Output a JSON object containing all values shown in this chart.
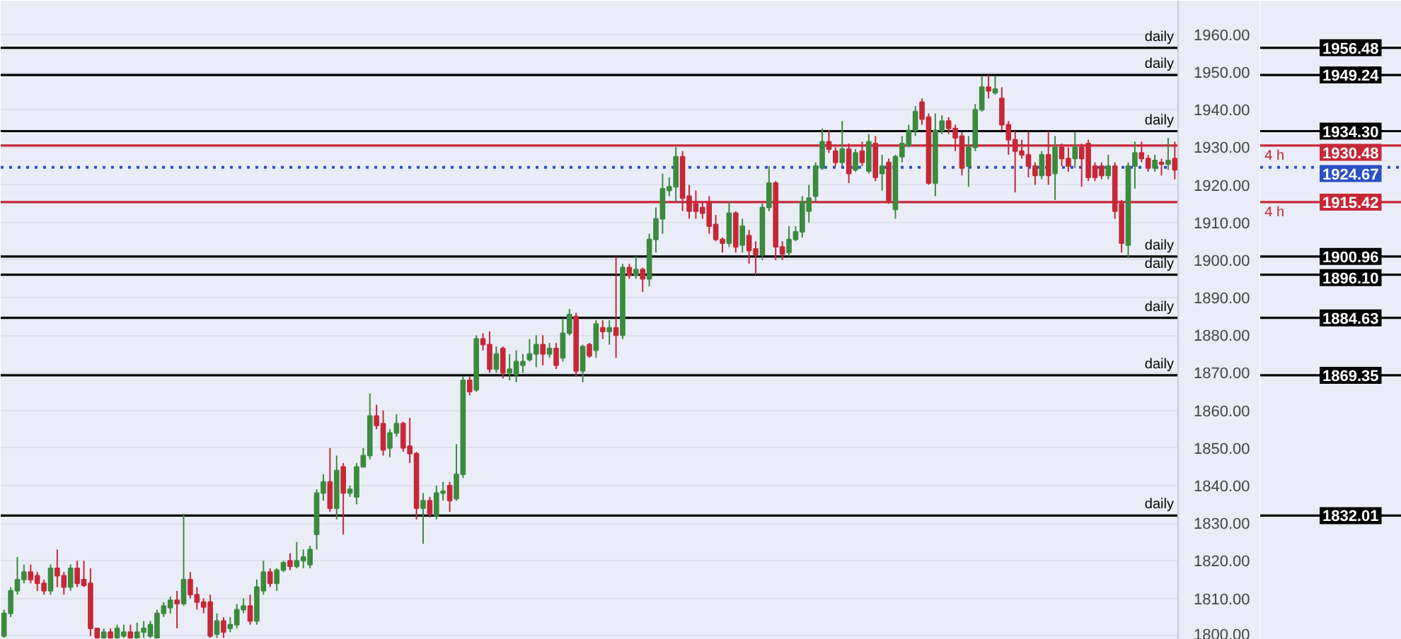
{
  "chart_data": {
    "type": "candlestick",
    "categories": [
      null,
      null,
      null,
      null,
      null,
      null,
      null,
      null,
      null,
      null,
      null,
      null,
      null,
      null,
      null,
      null,
      null,
      null,
      null,
      null,
      null,
      null,
      null,
      null,
      null,
      null,
      null,
      null,
      null,
      null,
      null,
      null,
      null,
      null,
      null,
      null,
      null,
      null,
      null,
      null,
      null,
      null,
      null,
      null,
      null,
      null,
      null,
      null,
      null,
      null,
      null,
      null,
      null,
      null,
      null,
      null,
      null,
      null,
      null,
      null,
      null,
      null,
      null,
      null,
      null,
      null,
      null,
      null,
      null,
      null,
      null,
      null,
      null,
      null,
      null,
      null,
      null,
      null,
      null,
      null,
      null,
      null,
      null,
      null,
      null,
      null,
      null,
      null,
      null,
      null,
      null,
      null,
      null,
      null,
      null,
      null,
      null,
      null,
      null,
      null,
      null,
      null,
      null,
      null,
      null,
      null,
      null,
      null,
      null,
      null,
      null,
      null,
      null,
      null,
      null,
      null,
      null,
      null,
      null,
      null,
      null,
      null,
      null,
      null,
      null,
      null,
      null,
      null,
      null,
      null,
      null,
      null,
      null,
      null,
      null,
      null,
      null,
      null,
      null,
      null,
      null,
      null,
      null,
      null,
      null,
      null,
      null,
      null,
      null,
      null,
      null,
      null,
      null,
      null,
      null,
      null,
      null,
      null,
      null,
      null,
      null,
      null,
      null,
      null,
      null,
      null,
      null,
      null,
      null,
      null,
      null,
      null,
      null,
      null,
      null,
      null,
      null
    ],
    "ohlc": [
      [
        1800,
        1807,
        1799.5,
        1806
      ],
      [
        1806,
        1813,
        1805,
        1812
      ],
      [
        1812,
        1821,
        1811,
        1815
      ],
      [
        1815,
        1819,
        1814,
        1817
      ],
      [
        1817,
        1819,
        1814,
        1815
      ],
      [
        1816,
        1817,
        1812,
        1814
      ],
      [
        1814,
        1815,
        1811,
        1812
      ],
      [
        1812,
        1819,
        1811,
        1818
      ],
      [
        1818,
        1823,
        1813,
        1816
      ],
      [
        1816,
        1817,
        1811,
        1813
      ],
      [
        1813,
        1819,
        1812,
        1818
      ],
      [
        1818,
        1820,
        1813,
        1814
      ],
      [
        1815,
        1820,
        1813,
        1813.5
      ],
      [
        1814,
        1818,
        1800,
        1802
      ],
      [
        1802,
        1802,
        1799.5,
        1799.5
      ],
      [
        1799.5,
        1802,
        1799.5,
        1801
      ],
      [
        1801,
        1802,
        1799.5,
        1799.5
      ],
      [
        1799.5,
        1803,
        1799.5,
        1802
      ],
      [
        1800,
        1803,
        1799.5,
        1801
      ],
      [
        1801,
        1803,
        1799.5,
        1799.5
      ],
      [
        1799.5,
        1803.5,
        1799.5,
        1801
      ],
      [
        1801,
        1804,
        1799.5,
        1802
      ],
      [
        1800,
        1804,
        1799.5,
        1803
      ],
      [
        1799.5,
        1807,
        1799.5,
        1806
      ],
      [
        1806,
        1809,
        1805,
        1808
      ],
      [
        1807.5,
        1810.5,
        1806,
        1809.5
      ],
      [
        1809.5,
        1812,
        1802,
        1808.6
      ],
      [
        1808.6,
        1832.5,
        1808,
        1815
      ],
      [
        1815,
        1817,
        1810,
        1811
      ],
      [
        1811,
        1813,
        1807,
        1809
      ],
      [
        1809,
        1810,
        1806,
        1807.7
      ],
      [
        1809,
        1811,
        1799.5,
        1800
      ],
      [
        1800.5,
        1806,
        1799.5,
        1804
      ],
      [
        1804,
        1805,
        1799.5,
        1801
      ],
      [
        1802,
        1805,
        1801,
        1803
      ],
      [
        1803,
        1808.5,
        1802,
        1807
      ],
      [
        1807,
        1810,
        1806,
        1808
      ],
      [
        1808,
        1811,
        1803,
        1804
      ],
      [
        1804,
        1815,
        1803,
        1813
      ],
      [
        1812,
        1820,
        1811,
        1817
      ],
      [
        1817,
        1818,
        1813,
        1814
      ],
      [
        1814,
        1818,
        1812,
        1817.5
      ],
      [
        1817.5,
        1820,
        1817,
        1819.5
      ],
      [
        1820,
        1822,
        1817.5,
        1818.5
      ],
      [
        1818.5,
        1825,
        1818,
        1820
      ],
      [
        1820,
        1823,
        1818,
        1821
      ],
      [
        1819,
        1824,
        1818,
        1823
      ],
      [
        1827,
        1839,
        1823,
        1838
      ],
      [
        1838,
        1843,
        1836,
        1841
      ],
      [
        1841,
        1850,
        1833,
        1834
      ],
      [
        1834,
        1848,
        1831,
        1844
      ],
      [
        1845,
        1846,
        1827,
        1838
      ],
      [
        1838,
        1840,
        1837,
        1839
      ],
      [
        1837,
        1846,
        1835,
        1845
      ],
      [
        1845,
        1850,
        1845,
        1848
      ],
      [
        1848,
        1864.5,
        1847,
        1858.5
      ],
      [
        1858.5,
        1861.5,
        1855,
        1856
      ],
      [
        1856.5,
        1860,
        1848,
        1849.5
      ],
      [
        1850,
        1855,
        1847.5,
        1854
      ],
      [
        1854,
        1859,
        1853,
        1856.5
      ],
      [
        1856.5,
        1857,
        1849,
        1850
      ],
      [
        1850.5,
        1858,
        1846,
        1848.5
      ],
      [
        1848.5,
        1849,
        1831,
        1834
      ],
      [
        1834,
        1838,
        1824.5,
        1836
      ],
      [
        1836,
        1837,
        1831.5,
        1832.5
      ],
      [
        1832,
        1840,
        1831,
        1838
      ],
      [
        1838,
        1841,
        1836,
        1838.5
      ],
      [
        1840,
        1841,
        1833,
        1836
      ],
      [
        1836.5,
        1851,
        1836,
        1843
      ],
      [
        1843,
        1869,
        1842,
        1868
      ],
      [
        1868,
        1869,
        1864,
        1865
      ],
      [
        1865.5,
        1880,
        1865,
        1879
      ],
      [
        1879,
        1880.5,
        1876,
        1877.5
      ],
      [
        1877.5,
        1881,
        1870,
        1871
      ],
      [
        1871,
        1877,
        1870,
        1875
      ],
      [
        1876.5,
        1877,
        1868.5,
        1870
      ],
      [
        1870,
        1875,
        1868,
        1871
      ],
      [
        1869.5,
        1876,
        1867.5,
        1873
      ],
      [
        1872,
        1875,
        1870,
        1873
      ],
      [
        1873.5,
        1879,
        1873,
        1875
      ],
      [
        1875,
        1880,
        1871.5,
        1877.5
      ],
      [
        1877.5,
        1880,
        1872,
        1875
      ],
      [
        1875,
        1878,
        1874,
        1876.5
      ],
      [
        1876.5,
        1878,
        1871,
        1872
      ],
      [
        1874,
        1884.5,
        1873,
        1880.5
      ],
      [
        1880.5,
        1887,
        1880,
        1885.5
      ],
      [
        1885,
        1886,
        1869,
        1870.5
      ],
      [
        1870.5,
        1877.5,
        1867.5,
        1877
      ],
      [
        1877.5,
        1878,
        1874,
        1874.5
      ],
      [
        1876,
        1884,
        1874,
        1883
      ],
      [
        1882,
        1884,
        1879,
        1881
      ],
      [
        1881,
        1884,
        1877.5,
        1882
      ],
      [
        1882,
        1901,
        1874,
        1880
      ],
      [
        1880,
        1899,
        1879,
        1898
      ],
      [
        1898,
        1899,
        1895,
        1896
      ],
      [
        1896,
        1901,
        1895,
        1897.5
      ],
      [
        1897.5,
        1898,
        1891.5,
        1895
      ],
      [
        1895,
        1907,
        1893,
        1905.5
      ],
      [
        1905.5,
        1914,
        1902,
        1911
      ],
      [
        1911,
        1923,
        1907,
        1919
      ],
      [
        1918.5,
        1922,
        1917,
        1919.5
      ],
      [
        1919.5,
        1930,
        1915.5,
        1927.5
      ],
      [
        1927.5,
        1929,
        1913,
        1916.5
      ],
      [
        1917,
        1920,
        1911,
        1913
      ],
      [
        1915,
        1918.5,
        1911,
        1913
      ],
      [
        1914,
        1915.5,
        1911,
        1912.5
      ],
      [
        1915.5,
        1917,
        1907,
        1909
      ],
      [
        1909.5,
        1912,
        1905,
        1905.5
      ],
      [
        1905.5,
        1906,
        1902,
        1904.5
      ],
      [
        1904.5,
        1915.5,
        1903.5,
        1912.5
      ],
      [
        1912.5,
        1913,
        1902,
        1903.5
      ],
      [
        1904,
        1911,
        1902,
        1909
      ],
      [
        1906.5,
        1908,
        1899,
        1902.5
      ],
      [
        1903,
        1905,
        1896.1,
        1901.5
      ],
      [
        1901.5,
        1915,
        1900,
        1914
      ],
      [
        1914,
        1925,
        1913,
        1920.5
      ],
      [
        1920.5,
        1921,
        1900,
        1903.5
      ],
      [
        1903.5,
        1905,
        1900,
        1901.6
      ],
      [
        1902,
        1909,
        1901,
        1905.5
      ],
      [
        1905.5,
        1909,
        1905,
        1907.5
      ],
      [
        1907.5,
        1917,
        1906,
        1915.5
      ],
      [
        1913,
        1920,
        1910,
        1916.5
      ],
      [
        1917,
        1926,
        1915.5,
        1925
      ],
      [
        1924.5,
        1935,
        1924,
        1931.5
      ],
      [
        1931.5,
        1934.5,
        1928.5,
        1929.5
      ],
      [
        1929,
        1930,
        1925,
        1926
      ],
      [
        1926,
        1937,
        1925,
        1929.5
      ],
      [
        1929.5,
        1931,
        1920.5,
        1923
      ],
      [
        1924,
        1929.5,
        1923.5,
        1928.5
      ],
      [
        1929,
        1931.5,
        1925,
        1926
      ],
      [
        1923.7,
        1933.5,
        1923,
        1931.5
      ],
      [
        1931,
        1933,
        1921,
        1922
      ],
      [
        1923,
        1928,
        1918.5,
        1925
      ],
      [
        1926,
        1927,
        1915,
        1915.5
      ],
      [
        1913.5,
        1928,
        1911,
        1927.5
      ],
      [
        1927.5,
        1933,
        1926,
        1931
      ],
      [
        1930.5,
        1936,
        1930,
        1934.5
      ],
      [
        1934.5,
        1941,
        1933,
        1939.5
      ],
      [
        1942,
        1943,
        1936,
        1937.5
      ],
      [
        1938,
        1939,
        1920,
        1920.5
      ],
      [
        1920.5,
        1939,
        1917,
        1934.5
      ],
      [
        1934.5,
        1938.5,
        1933.5,
        1937
      ],
      [
        1937,
        1938,
        1933.5,
        1935
      ],
      [
        1935,
        1936,
        1929,
        1932.5
      ],
      [
        1933,
        1934,
        1922.5,
        1924.5
      ],
      [
        1925,
        1933,
        1919.5,
        1930
      ],
      [
        1930,
        1941.5,
        1929,
        1940
      ],
      [
        1940,
        1949,
        1939.5,
        1946
      ],
      [
        1946,
        1949.2,
        1943,
        1945
      ],
      [
        1944.5,
        1949,
        1944,
        1945.5
      ],
      [
        1943,
        1946,
        1934.5,
        1936
      ],
      [
        1936,
        1937,
        1928,
        1932
      ],
      [
        1932,
        1934.3,
        1918,
        1929
      ],
      [
        1929,
        1932,
        1927,
        1928
      ],
      [
        1928,
        1934,
        1922,
        1925
      ],
      [
        1925,
        1926,
        1920,
        1922.5
      ],
      [
        1922.5,
        1929,
        1921.5,
        1928
      ],
      [
        1928,
        1934.3,
        1920,
        1922.5
      ],
      [
        1923,
        1933,
        1916,
        1930
      ],
      [
        1930,
        1931,
        1925,
        1927
      ],
      [
        1927,
        1930,
        1923.5,
        1925
      ],
      [
        1927,
        1934,
        1924.5,
        1930
      ],
      [
        1930,
        1931,
        1919.5,
        1927
      ],
      [
        1931,
        1932,
        1921,
        1922
      ],
      [
        1925,
        1926,
        1921,
        1922
      ],
      [
        1925,
        1926,
        1921.5,
        1922.5
      ],
      [
        1922.5,
        1928,
        1921.5,
        1925
      ],
      [
        1925,
        1926,
        1911,
        1913
      ],
      [
        1915,
        1916,
        1902,
        1904.5
      ],
      [
        1904,
        1926,
        1900.5,
        1925
      ],
      [
        1925,
        1931.5,
        1919,
        1928.5
      ],
      [
        1928.5,
        1931.5,
        1926,
        1927
      ],
      [
        1927,
        1928,
        1923.5,
        1924.5
      ],
      [
        1924.5,
        1928,
        1923.5,
        1926.5
      ],
      [
        1926,
        1927,
        1922.5,
        1925.5
      ],
      [
        1925.5,
        1932.5,
        1924,
        1926.5
      ],
      [
        1927,
        1931.5,
        1921.5,
        1924
      ]
    ],
    "ylim": [
      1799,
      1969
    ],
    "yticks": [
      {
        "value": 1800,
        "label": "1800.00"
      },
      {
        "value": 1810,
        "label": "1810.00"
      },
      {
        "value": 1820,
        "label": "1820.00"
      },
      {
        "value": 1830,
        "label": "1830.00"
      },
      {
        "value": 1840,
        "label": "1840.00"
      },
      {
        "value": 1850,
        "label": "1850.00"
      },
      {
        "value": 1860,
        "label": "1860.00"
      },
      {
        "value": 1870,
        "label": "1870.00"
      },
      {
        "value": 1880,
        "label": "1880.00"
      },
      {
        "value": 1890,
        "label": "1890.00"
      },
      {
        "value": 1900,
        "label": "1900.00"
      },
      {
        "value": 1910,
        "label": "1910.00"
      },
      {
        "value": 1920,
        "label": "1920.00"
      },
      {
        "value": 1930,
        "label": "1930.00"
      },
      {
        "value": 1940,
        "label": "1940.00"
      },
      {
        "value": 1950,
        "label": "1950.00"
      },
      {
        "value": 1960,
        "label": "1960.00"
      }
    ],
    "grid": "y",
    "annotations": [
      "1956.48",
      "1949.24",
      "1934.30",
      "1930.48",
      "1924.67",
      "1915.42",
      "1900.96",
      "1896.10",
      "1884.63",
      "1869.35",
      "1832.01"
    ],
    "ref_lines": [
      {
        "axis": "y",
        "value": 1956.48,
        "label": "daily",
        "color": "#000000"
      },
      {
        "axis": "y",
        "value": 1949.24,
        "label": "daily",
        "color": "#000000"
      },
      {
        "axis": "y",
        "value": 1934.3,
        "label": "daily",
        "color": "#000000"
      },
      {
        "axis": "y",
        "value": 1930.48,
        "label": "4 h",
        "color": "#c62838"
      },
      {
        "axis": "y",
        "value": 1924.67,
        "color": "#2a4fc7",
        "line_style": "dotted"
      },
      {
        "axis": "y",
        "value": 1915.42,
        "label": "4 h",
        "color": "#c62838"
      },
      {
        "axis": "y",
        "value": 1900.96,
        "label": "daily",
        "color": "#000000"
      },
      {
        "axis": "y",
        "value": 1896.1,
        "label": "daily",
        "color": "#000000"
      },
      {
        "axis": "y",
        "value": 1884.63,
        "label": "daily",
        "color": "#000000"
      },
      {
        "axis": "y",
        "value": 1869.35,
        "label": "daily",
        "color": "#000000"
      },
      {
        "axis": "y",
        "value": 1832.01,
        "label": "daily",
        "color": "#000000"
      }
    ]
  }
}
